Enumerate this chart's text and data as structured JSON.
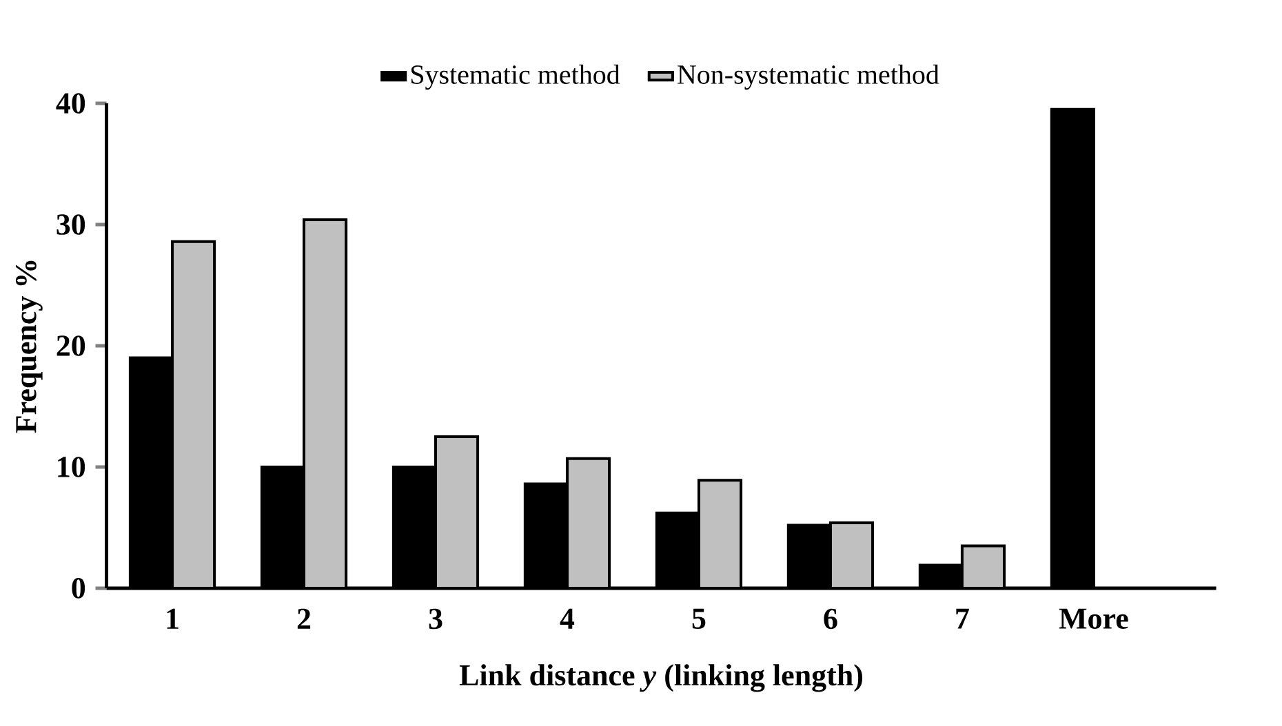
{
  "chart_data": {
    "type": "bar",
    "xlabel": "Link distance *y* (linking length)",
    "ylabel": "Frequency %",
    "categories": [
      "1",
      "2",
      "3",
      "4",
      "5",
      "6",
      "7",
      "More"
    ],
    "series": [
      {
        "name": "Systematic method",
        "color": "#000000",
        "values": [
          19,
          10,
          10,
          8.6,
          6.2,
          5.2,
          1.9,
          39.5
        ]
      },
      {
        "name": "Non-systematic method",
        "color": "#c0c0c0",
        "values": [
          28.6,
          30.4,
          12.5,
          10.7,
          8.9,
          5.4,
          3.5,
          null
        ]
      }
    ],
    "ylim": [
      0,
      40
    ],
    "yticks": [
      0,
      10,
      20,
      30,
      40
    ],
    "legend": "top",
    "grid": false
  }
}
